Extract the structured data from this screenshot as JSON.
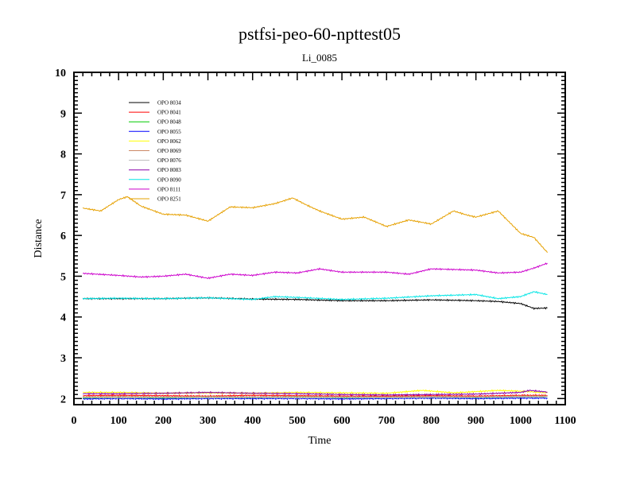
{
  "chart_data": {
    "type": "line",
    "title": "pstfsi-peo-60-npttest05",
    "subtitle": "Li_0085",
    "xlabel": "Time",
    "ylabel": "Distance",
    "xlim": [
      0,
      1100
    ],
    "ylim": [
      1.85,
      10
    ],
    "xticks": [
      0,
      100,
      200,
      300,
      400,
      500,
      600,
      700,
      800,
      900,
      1000,
      1100
    ],
    "yticks": [
      2,
      3,
      4,
      5,
      6,
      7,
      8,
      9,
      10
    ],
    "grid": false,
    "legend_position": "top-left",
    "series": [
      {
        "name": "OPO 8034",
        "color": "#000000",
        "x": [
          20,
          100,
          200,
          300,
          400,
          500,
          600,
          700,
          800,
          900,
          950,
          1000,
          1030,
          1060
        ],
        "y": [
          4.45,
          4.45,
          4.45,
          4.47,
          4.44,
          4.43,
          4.4,
          4.4,
          4.42,
          4.4,
          4.38,
          4.33,
          4.21,
          4.22
        ]
      },
      {
        "name": "OPO 8041",
        "color": "#ff0000",
        "x": [
          20,
          100,
          200,
          300,
          400,
          500,
          600,
          700,
          800,
          900,
          1000,
          1060
        ],
        "y": [
          2.07,
          2.08,
          2.07,
          2.06,
          2.08,
          2.07,
          2.06,
          2.06,
          2.07,
          2.06,
          2.08,
          2.08
        ]
      },
      {
        "name": "OPO 8048",
        "color": "#00cc00",
        "x": [
          20,
          100,
          200,
          300,
          400,
          500,
          600,
          700,
          800,
          900,
          1000,
          1060
        ],
        "y": [
          2.01,
          2.02,
          2.01,
          2.02,
          2.02,
          2.03,
          2.02,
          2.02,
          2.03,
          2.02,
          2.04,
          2.04
        ]
      },
      {
        "name": "OPO 8055",
        "color": "#0000ff",
        "x": [
          20,
          100,
          200,
          300,
          400,
          500,
          600,
          700,
          800,
          900,
          1000,
          1060
        ],
        "y": [
          1.99,
          2.0,
          1.99,
          2.0,
          2.0,
          2.0,
          1.99,
          2.0,
          2.01,
          2.0,
          2.01,
          2.01
        ]
      },
      {
        "name": "OPO 8062",
        "color": "#ffff00",
        "x": [
          20,
          100,
          200,
          300,
          400,
          500,
          600,
          700,
          780,
          850,
          950,
          1000,
          1060
        ],
        "y": [
          2.15,
          2.15,
          2.13,
          2.14,
          2.13,
          2.15,
          2.14,
          2.13,
          2.2,
          2.14,
          2.2,
          2.18,
          2.14
        ]
      },
      {
        "name": "OPO 8069",
        "color": "#cc8866",
        "x": [
          20,
          100,
          200,
          300,
          400,
          500,
          600,
          700,
          800,
          900,
          1000,
          1060
        ],
        "y": [
          2.04,
          2.05,
          2.04,
          2.05,
          2.04,
          2.05,
          2.04,
          2.04,
          2.05,
          2.04,
          2.06,
          2.06
        ]
      },
      {
        "name": "OPO 8076",
        "color": "#bbbbbb",
        "x": [
          20,
          100,
          200,
          300,
          400,
          500,
          600,
          700,
          800,
          900,
          1000,
          1060
        ],
        "y": [
          2.03,
          2.02,
          2.03,
          2.02,
          2.03,
          2.02,
          2.03,
          2.02,
          2.03,
          2.03,
          2.04,
          2.04
        ]
      },
      {
        "name": "OPO 8083",
        "color": "#8800aa",
        "x": [
          20,
          100,
          200,
          300,
          400,
          500,
          600,
          700,
          800,
          900,
          1000,
          1020,
          1060
        ],
        "y": [
          2.12,
          2.12,
          2.13,
          2.15,
          2.13,
          2.12,
          2.1,
          2.09,
          2.1,
          2.11,
          2.15,
          2.2,
          2.16
        ]
      },
      {
        "name": "OPO 8090",
        "color": "#00e5e5",
        "x": [
          20,
          100,
          200,
          300,
          400,
          450,
          500,
          600,
          700,
          800,
          900,
          950,
          1000,
          1030,
          1060
        ],
        "y": [
          4.45,
          4.46,
          4.45,
          4.47,
          4.43,
          4.5,
          4.48,
          4.43,
          4.46,
          4.52,
          4.55,
          4.45,
          4.5,
          4.62,
          4.55
        ]
      },
      {
        "name": "OPO 8111",
        "color": "#cc00cc",
        "x": [
          20,
          100,
          150,
          200,
          250,
          300,
          350,
          400,
          450,
          500,
          550,
          600,
          700,
          750,
          800,
          900,
          950,
          1000,
          1030,
          1060
        ],
        "y": [
          5.07,
          5.02,
          4.98,
          5.0,
          5.05,
          4.95,
          5.05,
          5.02,
          5.1,
          5.08,
          5.18,
          5.1,
          5.1,
          5.05,
          5.18,
          5.15,
          5.08,
          5.1,
          5.2,
          5.32
        ]
      },
      {
        "name": "OPO 8251",
        "color": "#e6a000",
        "x": [
          20,
          60,
          100,
          120,
          150,
          200,
          250,
          300,
          350,
          400,
          450,
          490,
          520,
          550,
          600,
          650,
          700,
          750,
          800,
          850,
          880,
          900,
          950,
          1000,
          1030,
          1060
        ],
        "y": [
          6.67,
          6.6,
          6.88,
          6.95,
          6.72,
          6.52,
          6.5,
          6.35,
          6.7,
          6.68,
          6.78,
          6.92,
          6.75,
          6.6,
          6.4,
          6.45,
          6.22,
          6.38,
          6.28,
          6.6,
          6.5,
          6.45,
          6.6,
          6.05,
          5.95,
          5.58
        ]
      }
    ]
  }
}
